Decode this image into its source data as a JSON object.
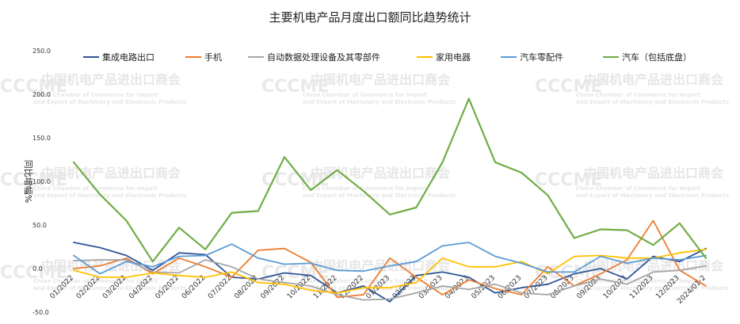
{
  "chart_data": {
    "type": "line",
    "title": "主要机电产品月度出口额同比趋势统计",
    "ylabel": "同比增幅%",
    "ylim": [
      -50,
      250
    ],
    "yticks": [
      "250.0",
      "200.0",
      "150.0",
      "100.0",
      "50.0",
      "0.0",
      "-50.0"
    ],
    "grid": false,
    "legend_position": "top",
    "categories": [
      "01/2022",
      "02/2022",
      "03/2022",
      "04/2022",
      "05/2022",
      "06/2022",
      "07/2022",
      "08/2022",
      "09/2022",
      "10/2022",
      "11/2022",
      "12/2022",
      "01/2023",
      "02/2023",
      "03/2023",
      "04/2023",
      "05/2023",
      "06/2023",
      "07/2023",
      "08/2023",
      "09/2023",
      "10/2023",
      "11/2023",
      "12/2023",
      "2024/01-2"
    ],
    "series": [
      {
        "name": "集成电路出口",
        "color": "#2f5597",
        "values": [
          30,
          24,
          15,
          -2,
          18,
          16,
          -10,
          -12,
          -5,
          -8,
          -28,
          -20,
          -38,
          -8,
          -4,
          -10,
          -28,
          -22,
          -18,
          -6,
          0,
          -12,
          14,
          8,
          23
        ]
      },
      {
        "name": "手机",
        "color": "#ed7d31",
        "values": [
          0,
          3,
          12,
          -6,
          12,
          2,
          -10,
          21,
          23,
          7,
          -33,
          -30,
          12,
          -10,
          -30,
          -13,
          -23,
          -30,
          2,
          -20,
          -6,
          10,
          55,
          -2,
          -20
        ]
      },
      {
        "name": "自动数据处理设备及其零部件",
        "color": "#a5a5a5",
        "values": [
          9,
          10,
          10,
          -4,
          -5,
          10,
          2,
          -12,
          -16,
          -20,
          -30,
          -36,
          -35,
          -28,
          -20,
          -24,
          -18,
          -28,
          -30,
          -20,
          -12,
          -18,
          -4,
          -2,
          3
        ]
      },
      {
        "name": "家用电器",
        "color": "#ffc000",
        "values": [
          -2,
          -10,
          -10,
          -5,
          -8,
          -10,
          -4,
          -16,
          -18,
          -25,
          -28,
          -22,
          -22,
          -16,
          12,
          2,
          2,
          8,
          -6,
          14,
          15,
          12,
          12,
          18,
          22
        ]
      },
      {
        "name": "汽车零配件",
        "color": "#5b9bd5",
        "values": [
          15,
          -6,
          8,
          2,
          14,
          15,
          28,
          12,
          5,
          6,
          -2,
          -3,
          3,
          8,
          26,
          30,
          14,
          6,
          -4,
          -4,
          14,
          6,
          12,
          10,
          15
        ]
      },
      {
        "name": "汽车（包括底盘）",
        "color": "#70ad47",
        "values": [
          122,
          85,
          55,
          8,
          47,
          22,
          64,
          66,
          128,
          90,
          113,
          89,
          62,
          70,
          122,
          195,
          122,
          110,
          84,
          35,
          45,
          44,
          27,
          52,
          12
        ]
      }
    ]
  },
  "watermark": {
    "org_cn": "中国机电产品进出口商会",
    "org_en_1": "China Chamber of Commerce for Import",
    "org_en_2": "and Export of Machinery and Electronic Products",
    "logo": "CCCME"
  }
}
